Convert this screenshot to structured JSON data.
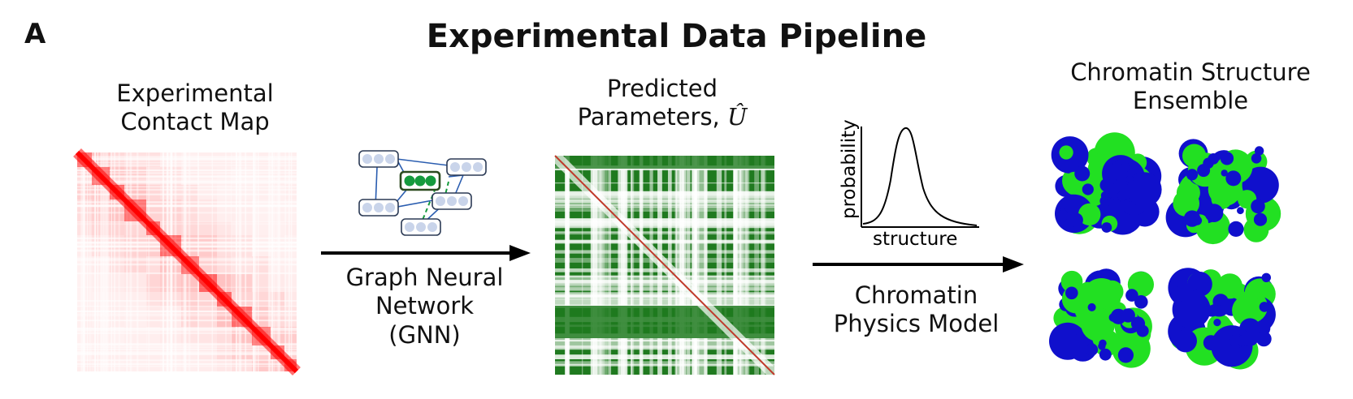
{
  "panel_label": "A",
  "title": "Experimental Data Pipeline",
  "step1": {
    "line1": "Experimental",
    "line2": "Contact Map"
  },
  "arrow1": {
    "line1": "Graph Neural",
    "line2": "Network",
    "line3": "(GNN)"
  },
  "step2": {
    "line1": "Predicted",
    "line2_prefix": "Parameters, ",
    "symbol": "Û"
  },
  "arrow2": {
    "line1": "Chromatin",
    "line2": "Physics Model"
  },
  "physics_plot": {
    "ylabel": "probability",
    "xlabel": "structure"
  },
  "step3": {
    "line1": "Chromatin Structure",
    "line2": "Ensemble"
  },
  "colors": {
    "contact_map": "#ff0000",
    "parameter_map": "#1f7a1f",
    "gnn_node_active": "#159a3d",
    "gnn_edge": "#2a5db0",
    "structure_a": "#22e022",
    "structure_b": "#1010cc",
    "arrow": "#000000"
  }
}
